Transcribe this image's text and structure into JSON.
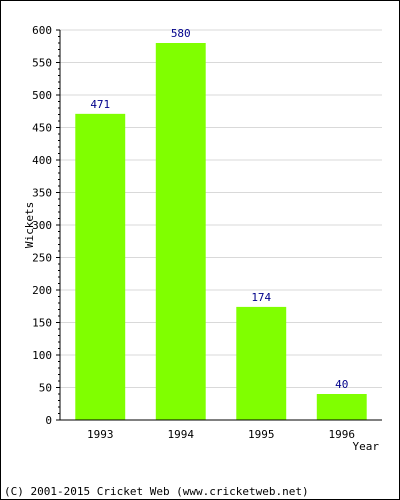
{
  "chart_data": {
    "type": "bar",
    "categories": [
      "1993",
      "1994",
      "1995",
      "1996"
    ],
    "values": [
      471,
      580,
      174,
      40
    ],
    "data_labels": [
      "471",
      "580",
      "174",
      "40"
    ],
    "xlabel": "Year",
    "ylabel": "Wickets",
    "ylim": [
      0,
      600
    ],
    "yticks": [
      0,
      50,
      100,
      150,
      200,
      250,
      300,
      350,
      400,
      450,
      500,
      550,
      600
    ],
    "grid": true,
    "legend": "none"
  },
  "colors": {
    "bar": "#80ff00",
    "grid": "#d9d9d9",
    "axis": "#000000",
    "data_label": "#00008b"
  },
  "footer": {
    "text": "(C) 2001-2015 Cricket Web (www.cricketweb.net)"
  }
}
